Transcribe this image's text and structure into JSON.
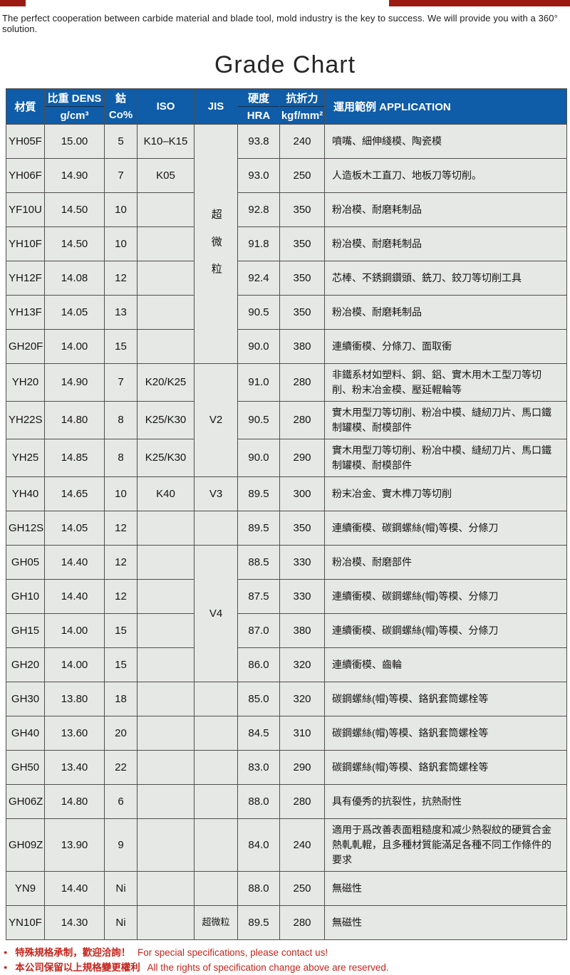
{
  "page": {
    "top_note": "The perfect cooperation between carbide material and blade tool, mold industry is the key to success. We will provide you with a 360°  solution.",
    "title": "Grade Chart"
  },
  "colors": {
    "header_blue": "#0f5ca8",
    "cell_gray": "#e6e8e5",
    "border_gray": "#4f4f4f",
    "note_red": "#c6251c",
    "top_bar_red": "#9b1b12"
  },
  "table": {
    "headers": {
      "material": "材質",
      "density_top": "比重 DENS",
      "density_unit": "g/cm³",
      "cobalt_top": "鈷",
      "cobalt_unit": "Co%",
      "iso": "ISO",
      "jis": "JIS",
      "hardness_top": "硬度",
      "hardness_unit": "HRA",
      "strength_top": "抗折力",
      "strength_unit": "kgf/mm²",
      "application": "運用範例 APPLICATION"
    },
    "rows": [
      {
        "m": "YH05F",
        "d": "15.00",
        "co": "5",
        "iso": "K10–K15",
        "jis": {
          "label": "超微粒",
          "span": 7,
          "vertical": true
        },
        "hra": "93.8",
        "ts": "240",
        "app": "噴嘴、細伸綫模、陶瓷模"
      },
      {
        "m": "YH06F",
        "d": "14.90",
        "co": "7",
        "iso": "K05",
        "jis": "skip",
        "hra": "93.0",
        "ts": "250",
        "app": "人造板木工直刀、地板刀等切削。"
      },
      {
        "m": "YF10U",
        "d": "14.50",
        "co": "10",
        "iso": "",
        "jis": "skip",
        "hra": "92.8",
        "ts": "350",
        "app": "粉冶模、耐磨耗制品"
      },
      {
        "m": "YH10F",
        "d": "14.50",
        "co": "10",
        "iso": "",
        "jis": "skip",
        "hra": "91.8",
        "ts": "350",
        "app": "粉冶模、耐磨耗制品"
      },
      {
        "m": "YH12F",
        "d": "14.08",
        "co": "12",
        "iso": "",
        "jis": "skip",
        "hra": "92.4",
        "ts": "350",
        "app": "芯棒、不銹鋼鑽頭、銑刀、鉸刀等切削工具"
      },
      {
        "m": "YH13F",
        "d": "14.05",
        "co": "13",
        "iso": "",
        "jis": "skip",
        "hra": "90.5",
        "ts": "350",
        "app": "粉冶模、耐磨耗制品"
      },
      {
        "m": "GH20F",
        "d": "14.00",
        "co": "15",
        "iso": "",
        "jis": "skip",
        "hra": "90.0",
        "ts": "380",
        "app": "連續衝模、分條刀、面取衝"
      },
      {
        "m": "YH20",
        "d": "14.90",
        "co": "7",
        "iso": "K20/K25",
        "jis": {
          "label": "V2",
          "span": 3
        },
        "hra": "91.0",
        "ts": "280",
        "app": "非鐵系材如塑料、銅、鋁、實木用木工型刀等切削、粉末冶金模、壓延輥輪等"
      },
      {
        "m": "YH22S",
        "d": "14.80",
        "co": "8",
        "iso": "K25/K30",
        "jis": "skip",
        "hra": "90.5",
        "ts": "280",
        "app": "實木用型刀等切削、粉冶中模、縫紉刀片、馬口鐵制罐模、耐模部件"
      },
      {
        "m": "YH25",
        "d": "14.85",
        "co": "8",
        "iso": "K25/K30",
        "jis": "skip",
        "hra": "90.0",
        "ts": "290",
        "app": "實木用型刀等切削、粉冶中模、縫紉刀片、馬口鐵制罐模、耐模部件"
      },
      {
        "m": "YH40",
        "d": "14.65",
        "co": "10",
        "iso": "K40",
        "jis": {
          "label": "V3",
          "span": 1
        },
        "hra": "89.5",
        "ts": "300",
        "app": "粉末冶金、實木榫刀等切削"
      },
      {
        "m": "GH12S",
        "d": "14.05",
        "co": "12",
        "iso": "",
        "jis": {
          "label": "",
          "span": 1
        },
        "hra": "89.5",
        "ts": "350",
        "app": "連續衝模、碳鋼螺絲(帽)等模、分條刀"
      },
      {
        "m": "GH05",
        "d": "14.40",
        "co": "12",
        "iso": "",
        "jis": {
          "label": "V4",
          "span": 4
        },
        "hra": "88.5",
        "ts": "330",
        "app": "粉冶模、耐磨部件"
      },
      {
        "m": "GH10",
        "d": "14.40",
        "co": "12",
        "iso": "",
        "jis": "skip",
        "hra": "87.5",
        "ts": "330",
        "app": "連續衝模、碳鋼螺絲(帽)等模、分條刀"
      },
      {
        "m": "GH15",
        "d": "14.00",
        "co": "15",
        "iso": "",
        "jis": "skip",
        "hra": "87.0",
        "ts": "380",
        "app": "連續衝模、碳鋼螺絲(帽)等模、分條刀"
      },
      {
        "m": "GH20",
        "d": "14.00",
        "co": "15",
        "iso": "",
        "jis": "skip",
        "hra": "86.0",
        "ts": "320",
        "app": "連續衝模、齒輪"
      },
      {
        "m": "GH30",
        "d": "13.80",
        "co": "18",
        "iso": "",
        "jis": "",
        "hra": "85.0",
        "ts": "320",
        "app": "碳鋼螺絲(帽)等模、鉻釩套筒螺栓等"
      },
      {
        "m": "GH40",
        "d": "13.60",
        "co": "20",
        "iso": "",
        "jis": "",
        "hra": "84.5",
        "ts": "310",
        "app": "碳鋼螺絲(帽)等模、鉻釩套筒螺栓等"
      },
      {
        "m": "GH50",
        "d": "13.40",
        "co": "22",
        "iso": "",
        "jis": "",
        "hra": "83.0",
        "ts": "290",
        "app": "碳鋼螺絲(帽)等模、鉻釩套筒螺栓等"
      },
      {
        "m": "GH06Z",
        "d": "14.80",
        "co": "6",
        "iso": "",
        "jis": "",
        "hra": "88.0",
        "ts": "280",
        "app": "具有優秀的抗裂性，抗熱耐性"
      },
      {
        "m": "GH09Z",
        "d": "13.90",
        "co": "9",
        "iso": "",
        "jis": "",
        "hra": "84.0",
        "ts": "240",
        "app": "適用于爲改善表面粗糙度和减少熱裂紋的硬質合金熱軋軋輥，且多種材質能滿足各種不同工作條件的要求"
      },
      {
        "m": "YN9",
        "d": "14.40",
        "co": "Ni",
        "iso": "",
        "jis": "",
        "hra": "88.0",
        "ts": "250",
        "app": "無磁性"
      },
      {
        "m": "YN10F",
        "d": "14.30",
        "co": "Ni",
        "iso": "",
        "jis": {
          "label": "超微粒",
          "span": 1,
          "small": true
        },
        "hra": "89.5",
        "ts": "280",
        "app": "無磁性"
      }
    ]
  },
  "footer": {
    "notes": [
      {
        "zh": "特殊規格承制，歡迎洽詢！",
        "en": "For special specifications, please contact us!"
      },
      {
        "zh": "本公司保留以上規格變更權利",
        "en": "All the rights of specification change above are reserved."
      }
    ]
  }
}
